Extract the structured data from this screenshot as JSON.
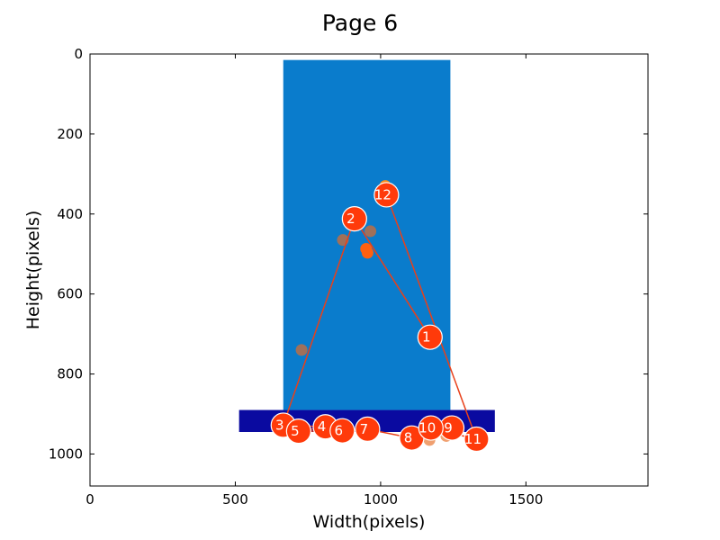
{
  "chart_data": {
    "type": "scatter",
    "title": "Page 6",
    "xlabel": "Width(pixels)",
    "ylabel": "Height(pixels)",
    "xlim": [
      0,
      1920
    ],
    "ylim": [
      1080,
      0
    ],
    "y_inverted": true,
    "grid": false,
    "xticks": [
      0,
      500,
      1000,
      1500
    ],
    "yticks": [
      0,
      200,
      400,
      600,
      800,
      1000
    ],
    "regions": [
      {
        "name": "large-blue-region",
        "x0": 665,
        "x1": 1240,
        "y0": 15,
        "y1": 890,
        "color": "#0a7ccc"
      },
      {
        "name": "dark-blue-band",
        "x0": 513,
        "x1": 1393,
        "y0": 890,
        "y1": 945,
        "color": "#0a0aa0"
      }
    ],
    "gaze_points": [
      {
        "x": 728,
        "y": 740,
        "color": "#a0705a"
      },
      {
        "x": 870,
        "y": 465,
        "color": "#a0705a"
      },
      {
        "x": 965,
        "y": 443,
        "color": "#a0705a"
      },
      {
        "x": 950,
        "y": 487,
        "color": "#ff6010"
      },
      {
        "x": 955,
        "y": 497,
        "color": "#ff6010"
      },
      {
        "x": 1016,
        "y": 330,
        "color": "#ff8c1a"
      },
      {
        "x": 1168,
        "y": 965,
        "color": "#f0a070"
      },
      {
        "x": 1226,
        "y": 955,
        "color": "#f0a070"
      },
      {
        "x": 1310,
        "y": 965,
        "color": "#f0a070"
      }
    ],
    "fixations": [
      {
        "label": "1",
        "x": 1170,
        "y": 708
      },
      {
        "label": "2",
        "x": 910,
        "y": 412
      },
      {
        "label": "3",
        "x": 665,
        "y": 928
      },
      {
        "label": "4",
        "x": 810,
        "y": 932
      },
      {
        "label": "5",
        "x": 718,
        "y": 943
      },
      {
        "label": "6",
        "x": 868,
        "y": 942
      },
      {
        "label": "7",
        "x": 955,
        "y": 938
      },
      {
        "label": "8",
        "x": 1107,
        "y": 960
      },
      {
        "label": "9",
        "x": 1245,
        "y": 935
      },
      {
        "label": "10",
        "x": 1173,
        "y": 935
      },
      {
        "label": "11",
        "x": 1330,
        "y": 963
      },
      {
        "label": "12",
        "x": 1020,
        "y": 352
      }
    ],
    "colors": {
      "fixation_fill": "#ff3a0a",
      "fixation_stroke": "#ffffff",
      "scanpath": "#e8401a",
      "axes": "#000000"
    }
  }
}
